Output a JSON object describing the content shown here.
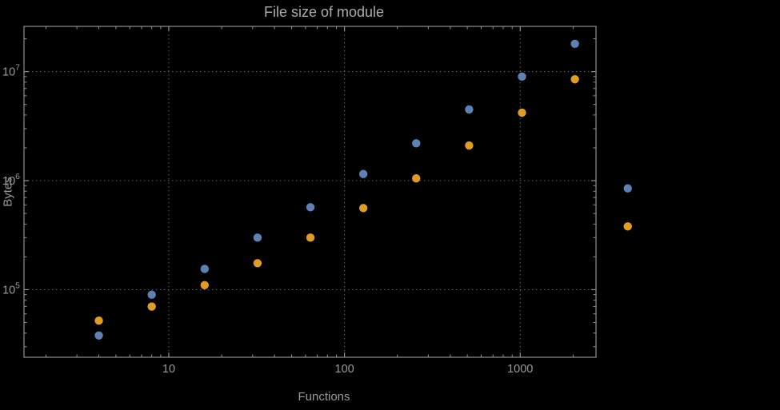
{
  "chart_data": {
    "type": "scatter",
    "title": "File size of module",
    "xlabel": "Functions",
    "ylabel": "Bytes",
    "x_scale": "log",
    "y_scale": "log",
    "xlim": [
      1.5,
      2700
    ],
    "ylim": [
      24000,
      26000000
    ],
    "grid": "dotted-major",
    "legend": "none",
    "x_major_ticks": [
      10,
      100,
      1000
    ],
    "x_major_tick_labels": [
      "10",
      "100",
      "1000"
    ],
    "y_major_ticks": [
      100000,
      1000000,
      10000000
    ],
    "y_tick_labels": [
      {
        "base": "10",
        "exp": "5",
        "value": 100000
      },
      {
        "base": "10",
        "exp": "6",
        "value": 1000000
      },
      {
        "base": "10",
        "exp": "7",
        "value": 10000000
      }
    ],
    "x": [
      4,
      8,
      16,
      32,
      64,
      128,
      256,
      512,
      1024,
      2048,
      4096
    ],
    "series": [
      {
        "name": "series-blue",
        "color": "#5e81b5",
        "values": [
          38000,
          90000,
          155000,
          300000,
          570000,
          1150000,
          2200000,
          4500000,
          9000000,
          18000000,
          850000
        ]
      },
      {
        "name": "series-orange",
        "color": "#e19c24",
        "values": [
          52000,
          70000,
          110000,
          175000,
          300000,
          560000,
          1050000,
          2100000,
          4200000,
          8500000,
          380000
        ]
      }
    ],
    "colors": {
      "background": "#000000",
      "frame": "#8f8f8f",
      "grid": "#616161",
      "title": "#ababab",
      "tick_labels": "#9a9a9a",
      "axis_labels": "#9a9a9a"
    }
  }
}
